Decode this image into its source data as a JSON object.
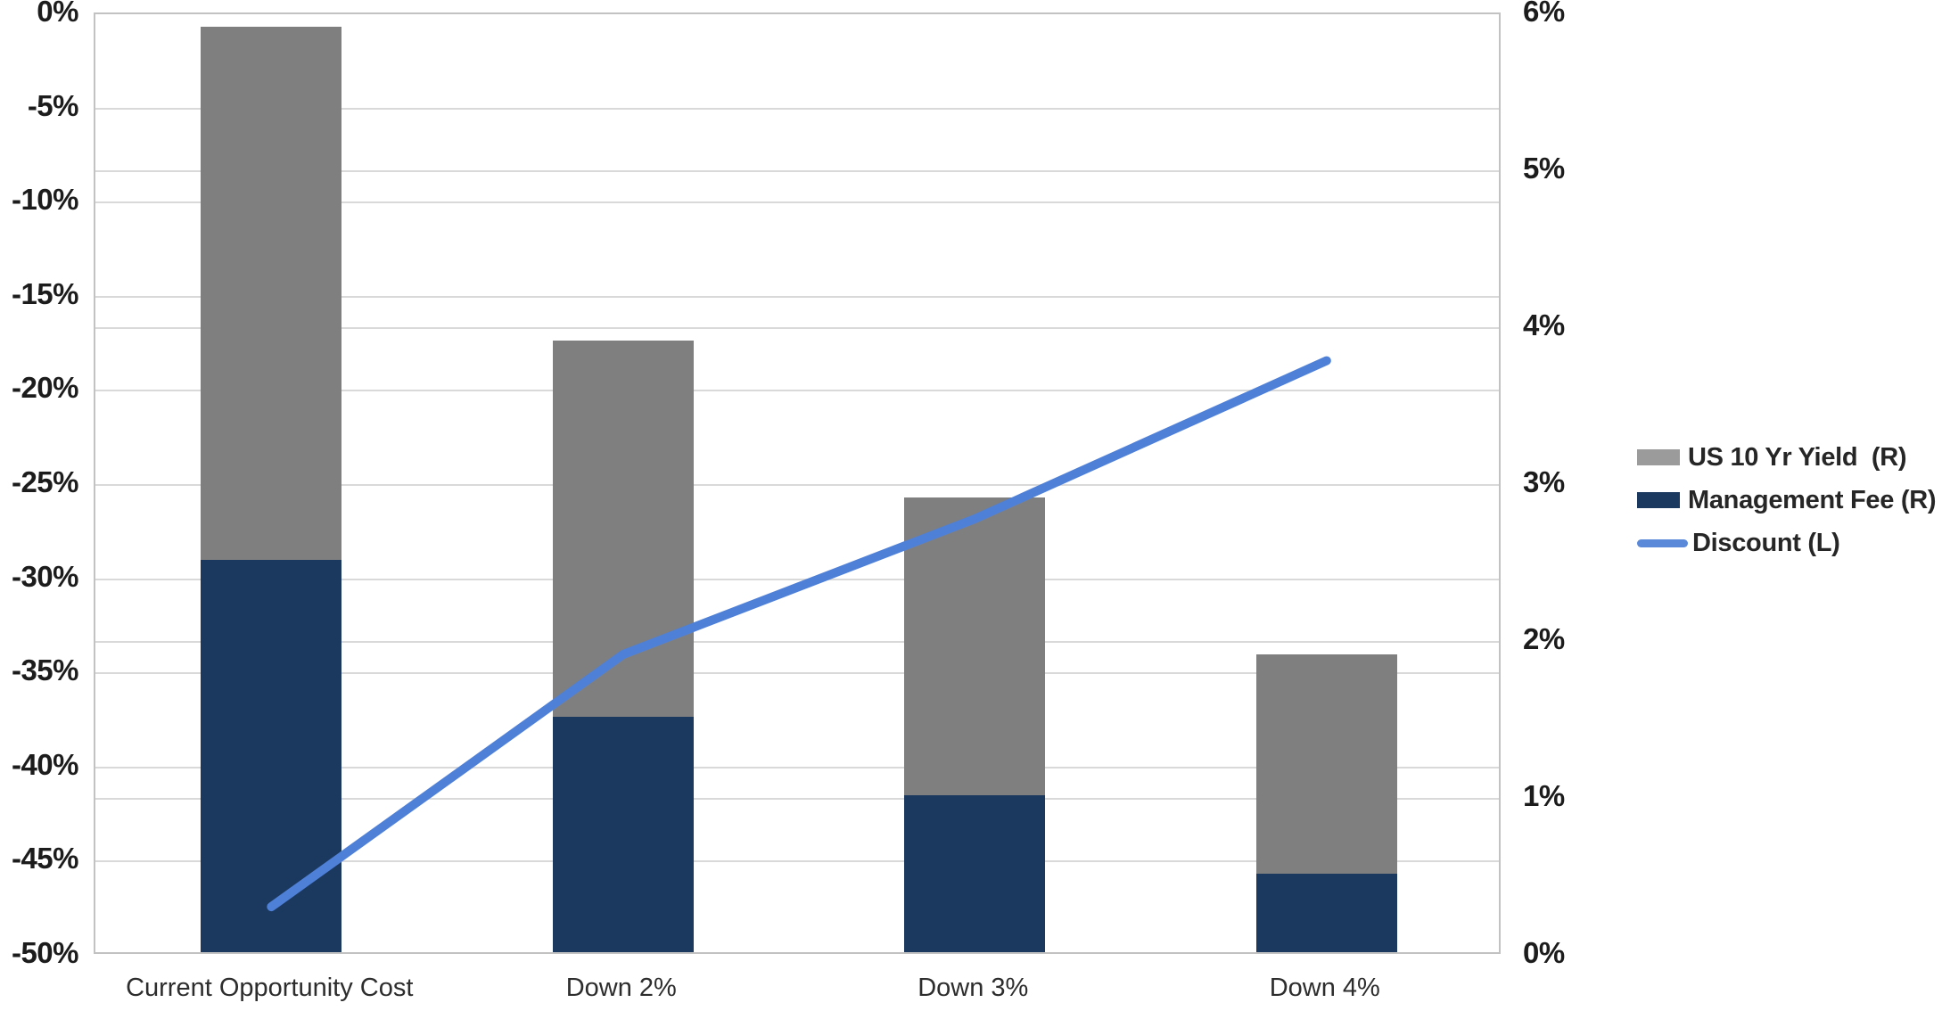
{
  "chart_data": {
    "type": "combo-stacked-bar-line",
    "categories": [
      "Current Opportunity Cost",
      "Down 2%",
      "Down 3%",
      "Down 4%"
    ],
    "bar_series": [
      {
        "name": "Management Fee (R)",
        "axis": "right",
        "color": "#1b385e",
        "values": [
          2.5,
          1.5,
          1.0,
          0.5
        ]
      },
      {
        "name": "US 10 Yr Yield  (R)",
        "axis": "right",
        "color": "#7f7f7f",
        "values": [
          3.4,
          2.4,
          1.9,
          1.4
        ]
      }
    ],
    "line_series": {
      "name": "Discount (L)",
      "axis": "left",
      "color": "#4f80d8",
      "values": [
        -47.4,
        -34.0,
        -26.8,
        -18.4
      ]
    },
    "left_axis": {
      "min": -50,
      "max": 0,
      "step": 5,
      "ticks": [
        "0%",
        "-5%",
        "-10%",
        "-15%",
        "-20%",
        "-25%",
        "-30%",
        "-35%",
        "-40%",
        "-45%",
        "-50%"
      ]
    },
    "right_axis": {
      "min": 0,
      "max": 6,
      "step": 1,
      "ticks": [
        "6%",
        "5%",
        "4%",
        "3%",
        "2%",
        "1%",
        "0%"
      ]
    },
    "legend": [
      {
        "label": "US 10 Yr Yield  (R)",
        "swatch": "box",
        "color": "#9b9b9b"
      },
      {
        "label": "Management Fee (R)",
        "swatch": "box",
        "color": "#1b385e"
      },
      {
        "label": "Discount (L)",
        "swatch": "line",
        "color": "#5b89d9"
      }
    ],
    "grid": true,
    "legend_position": "right",
    "colors": {
      "grid": "#d9d9d9",
      "plot_border": "#c2c2c2",
      "background": "#ffffff",
      "text": "#1c1c1c"
    }
  }
}
